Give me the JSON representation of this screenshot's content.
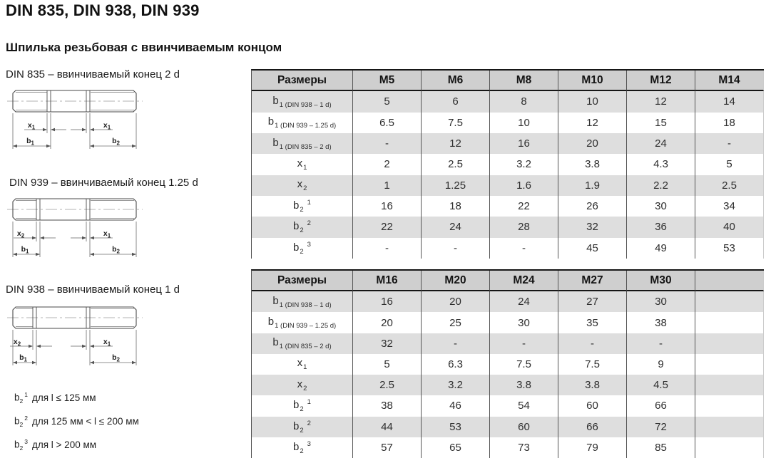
{
  "page": {
    "title": "DIN 835, DIN 938, DIN 939",
    "subtitle": "Шпилька резьбовая с ввинчиваемым концом"
  },
  "diagrams": [
    {
      "caption": "DIN 835 – ввинчиваемый конец 2 d",
      "left_dim": {
        "base": "x",
        "sub": "1"
      },
      "right_dim": {
        "base": "x",
        "sub": "1"
      },
      "left_len": {
        "base": "b",
        "sub": "1"
      },
      "right_len": {
        "base": "b",
        "sub": "2"
      }
    },
    {
      "caption": "DIN 939 – ввинчиваемый конец 1.25 d",
      "left_dim": {
        "base": "x",
        "sub": "2"
      },
      "right_dim": {
        "base": "x",
        "sub": "1"
      },
      "left_len": {
        "base": "b",
        "sub": "1"
      },
      "right_len": {
        "base": "b",
        "sub": "2"
      }
    },
    {
      "caption": "DIN 938 – ввинчиваемый конец 1 d",
      "left_dim": {
        "base": "x",
        "sub": "2"
      },
      "right_dim": {
        "base": "x",
        "sub": "1"
      },
      "left_len": {
        "base": "b",
        "sub": "1"
      },
      "right_len": {
        "base": "b",
        "sub": "2"
      }
    }
  ],
  "footnotes": [
    {
      "base": "b",
      "sub": "2",
      "sup": "1",
      "text": "для l ≤ 125 мм"
    },
    {
      "base": "b",
      "sub": "2",
      "sup": "2",
      "text": "для 125 мм < l ≤ 200 мм"
    },
    {
      "base": "b",
      "sub": "2",
      "sup": "3",
      "text": "для l > 200 мм"
    }
  ],
  "tables": [
    {
      "header": [
        "Размеры",
        "M5",
        "M6",
        "M8",
        "M10",
        "M12",
        "M14"
      ],
      "rows": [
        {
          "label": {
            "base": "b",
            "sub": "1 (DIN 938 – 1 d)"
          },
          "values": [
            "5",
            "6",
            "8",
            "10",
            "12",
            "14"
          ]
        },
        {
          "label": {
            "base": "b",
            "sub": "1 (DIN 939 – 1.25 d)"
          },
          "values": [
            "6.5",
            "7.5",
            "10",
            "12",
            "15",
            "18"
          ]
        },
        {
          "label": {
            "base": "b",
            "sub": "1 (DIN 835 – 2 d)"
          },
          "values": [
            "-",
            "12",
            "16",
            "20",
            "24",
            "-"
          ]
        },
        {
          "label": {
            "base": "x",
            "sub": "1"
          },
          "values": [
            "2",
            "2.5",
            "3.2",
            "3.8",
            "4.3",
            "5"
          ]
        },
        {
          "label": {
            "base": "x",
            "sub": "2"
          },
          "values": [
            "1",
            "1.25",
            "1.6",
            "1.9",
            "2.2",
            "2.5"
          ]
        },
        {
          "label": {
            "base": "b",
            "sub": "2",
            "sup": "1"
          },
          "values": [
            "16",
            "18",
            "22",
            "26",
            "30",
            "34"
          ]
        },
        {
          "label": {
            "base": "b",
            "sub": "2",
            "sup": "2"
          },
          "values": [
            "22",
            "24",
            "28",
            "32",
            "36",
            "40"
          ]
        },
        {
          "label": {
            "base": "b",
            "sub": "2",
            "sup": "3"
          },
          "values": [
            "-",
            "-",
            "-",
            "45",
            "49",
            "53"
          ]
        }
      ]
    },
    {
      "header": [
        "Размеры",
        "M16",
        "M20",
        "M24",
        "M27",
        "M30",
        ""
      ],
      "rows": [
        {
          "label": {
            "base": "b",
            "sub": "1 (DIN 938 – 1 d)"
          },
          "values": [
            "16",
            "20",
            "24",
            "27",
            "30",
            ""
          ]
        },
        {
          "label": {
            "base": "b",
            "sub": "1 (DIN 939 – 1.25 d)"
          },
          "values": [
            "20",
            "25",
            "30",
            "35",
            "38",
            ""
          ]
        },
        {
          "label": {
            "base": "b",
            "sub": "1 (DIN 835 – 2 d)"
          },
          "values": [
            "32",
            "-",
            "-",
            "-",
            "-",
            ""
          ]
        },
        {
          "label": {
            "base": "x",
            "sub": "1"
          },
          "values": [
            "5",
            "6.3",
            "7.5",
            "7.5",
            "9",
            ""
          ]
        },
        {
          "label": {
            "base": "x",
            "sub": "2"
          },
          "values": [
            "2.5",
            "3.2",
            "3.8",
            "3.8",
            "4.5",
            ""
          ]
        },
        {
          "label": {
            "base": "b",
            "sub": "2",
            "sup": "1"
          },
          "values": [
            "38",
            "46",
            "54",
            "60",
            "66",
            ""
          ]
        },
        {
          "label": {
            "base": "b",
            "sub": "2",
            "sup": "2"
          },
          "values": [
            "44",
            "53",
            "60",
            "66",
            "72",
            ""
          ]
        },
        {
          "label": {
            "base": "b",
            "sub": "2",
            "sup": "3"
          },
          "values": [
            "57",
            "65",
            "73",
            "79",
            "85",
            ""
          ]
        }
      ]
    }
  ],
  "colors": {
    "header_bg": "#cfcfcf",
    "row_shade_bg": "#dedede",
    "table_border": "#161616",
    "grid_line": "#555555"
  }
}
